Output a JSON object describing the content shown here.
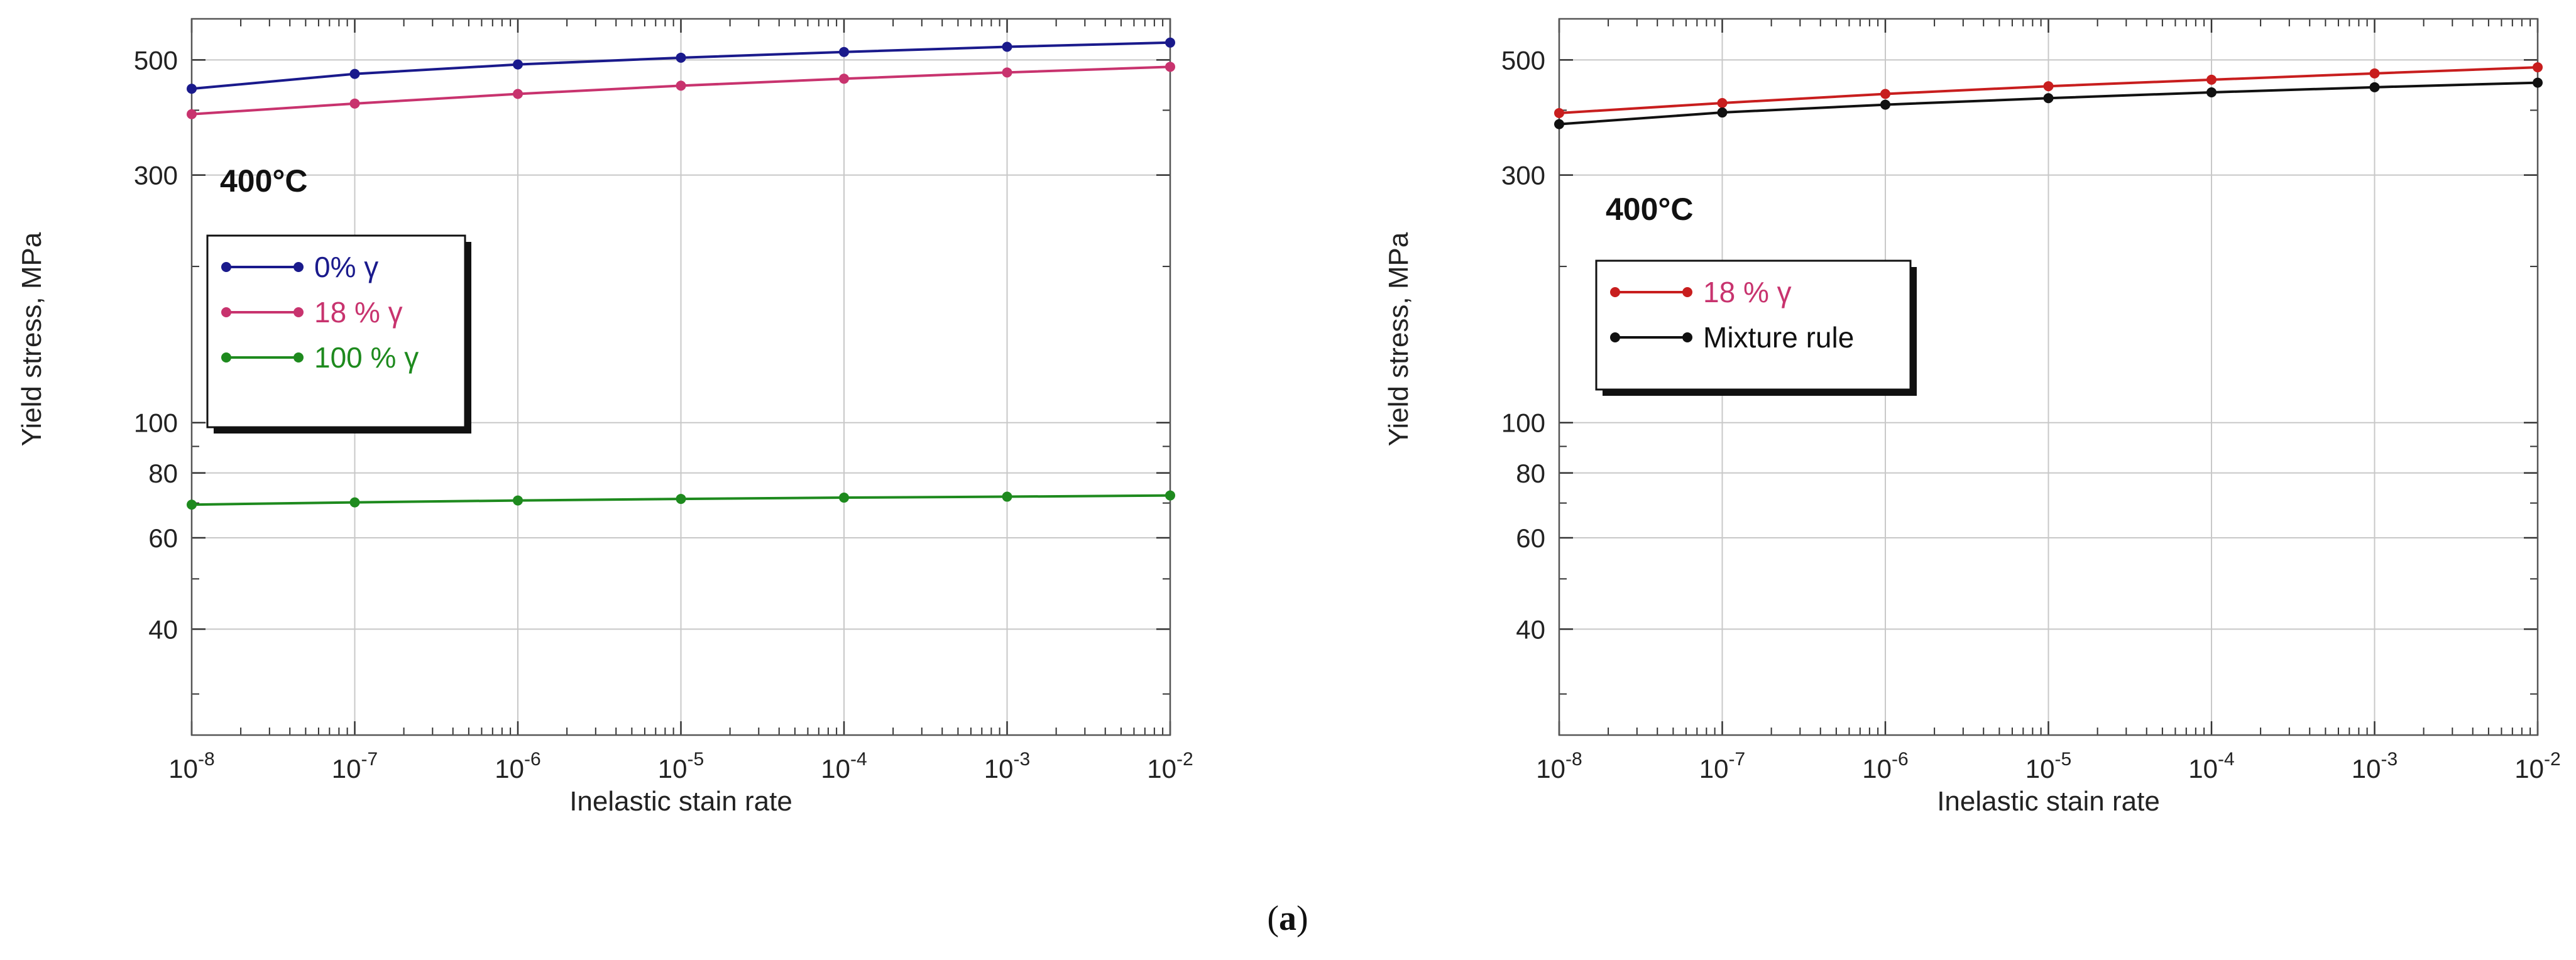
{
  "figure": {
    "caption_open": "(",
    "caption_letter": "a",
    "caption_close": ")"
  },
  "chart_data": [
    {
      "type": "line",
      "x_scale": "log",
      "y_scale": "log",
      "xlabel": "Inelastic stain rate",
      "ylabel": "Yield stress, MPa",
      "annotation": "400°C",
      "xlim": [
        1e-08,
        0.01
      ],
      "ylim": [
        25,
        600
      ],
      "grid": true,
      "legend_position": "left-middle",
      "x_tick_labels": [
        {
          "base": "10",
          "exp": "-8",
          "value": 1e-08
        },
        {
          "base": "10",
          "exp": "-7",
          "value": 1e-07
        },
        {
          "base": "10",
          "exp": "-6",
          "value": 1e-06
        },
        {
          "base": "10",
          "exp": "-5",
          "value": 1e-05
        },
        {
          "base": "10",
          "exp": "-4",
          "value": 0.0001
        },
        {
          "base": "10",
          "exp": "-3",
          "value": 0.001
        },
        {
          "base": "10",
          "exp": "-2",
          "value": 0.01
        }
      ],
      "y_tick_labels": [
        {
          "text": "500",
          "value": 500
        },
        {
          "text": "300",
          "value": 300
        },
        {
          "text": "100",
          "value": 100
        },
        {
          "text": "80",
          "value": 80
        },
        {
          "text": "60",
          "value": 60
        },
        {
          "text": "40",
          "value": 40
        }
      ],
      "x": [
        1e-08,
        1e-07,
        1e-06,
        1e-05,
        0.0001,
        0.001,
        0.01
      ],
      "series": [
        {
          "name": "0% γ",
          "color": "#1a1a8c",
          "values": [
            440,
            470,
            490,
            505,
            518,
            530,
            540
          ]
        },
        {
          "name": "18 % γ",
          "color": "#c8336e",
          "values": [
            393,
            412,
            430,
            446,
            460,
            473,
            485
          ]
        },
        {
          "name": "100 % γ",
          "color": "#1e8a1e",
          "values": [
            69.5,
            70.2,
            70.8,
            71.3,
            71.7,
            72.0,
            72.4
          ]
        }
      ]
    },
    {
      "type": "line",
      "x_scale": "log",
      "y_scale": "log",
      "xlabel": "Inelastic stain rate",
      "ylabel": "Yield stress, MPa",
      "annotation": "400°C",
      "xlim": [
        1e-08,
        0.01
      ],
      "ylim": [
        25,
        600
      ],
      "grid": true,
      "legend_position": "left-middle",
      "x_tick_labels": [
        {
          "base": "10",
          "exp": "-8",
          "value": 1e-08
        },
        {
          "base": "10",
          "exp": "-7",
          "value": 1e-07
        },
        {
          "base": "10",
          "exp": "-6",
          "value": 1e-06
        },
        {
          "base": "10",
          "exp": "-5",
          "value": 1e-05
        },
        {
          "base": "10",
          "exp": "-4",
          "value": 0.0001
        },
        {
          "base": "10",
          "exp": "-3",
          "value": 0.001
        },
        {
          "base": "10",
          "exp": "-2",
          "value": 0.01
        }
      ],
      "y_tick_labels": [
        {
          "text": "500",
          "value": 500
        },
        {
          "text": "300",
          "value": 300
        },
        {
          "text": "100",
          "value": 100
        },
        {
          "text": "80",
          "value": 80
        },
        {
          "text": "60",
          "value": 60
        },
        {
          "text": "40",
          "value": 40
        }
      ],
      "x": [
        1e-08,
        1e-07,
        1e-06,
        1e-05,
        0.0001,
        0.001,
        0.01
      ],
      "series": [
        {
          "name": "18 % γ",
          "color": "#c81e1e",
          "legend_text_color": "#c8336e",
          "values": [
            395,
            413,
            430,
            445,
            458,
            471,
            484
          ]
        },
        {
          "name": "Mixture rule",
          "color": "#111111",
          "values": [
            376,
            396,
            410,
            422,
            433,
            443,
            452
          ]
        }
      ]
    }
  ]
}
